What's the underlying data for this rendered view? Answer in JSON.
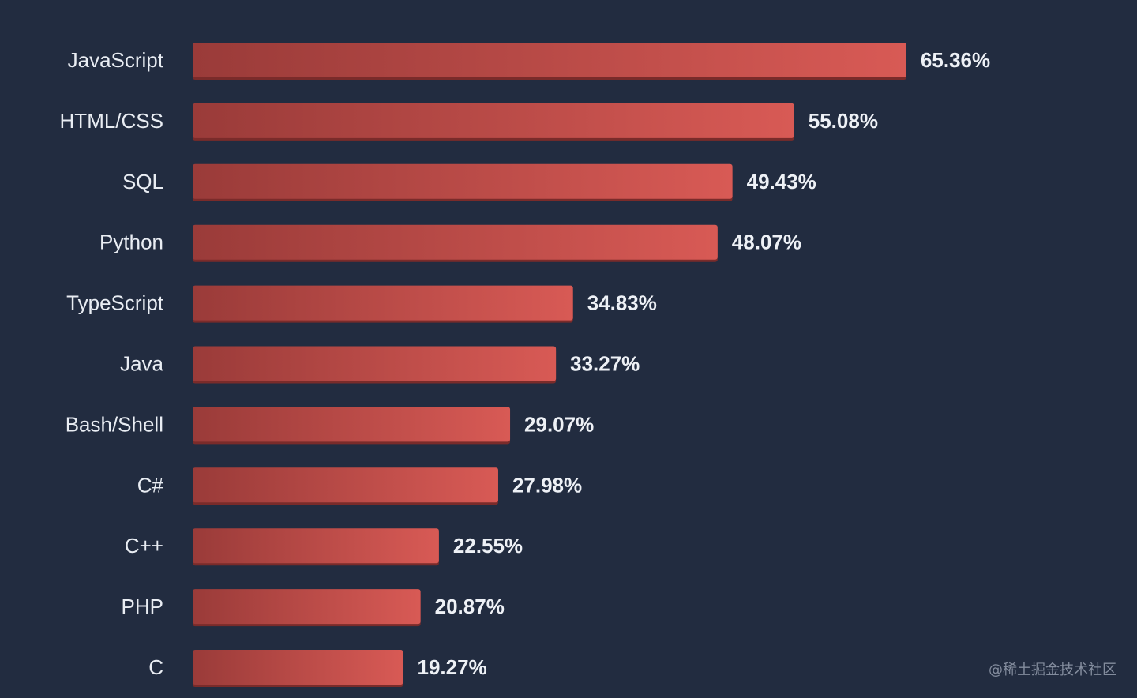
{
  "chart_data": {
    "type": "bar",
    "orientation": "horizontal",
    "categories": [
      "JavaScript",
      "HTML/CSS",
      "SQL",
      "Python",
      "TypeScript",
      "Java",
      "Bash/Shell",
      "C#",
      "C++",
      "PHP",
      "C"
    ],
    "values": [
      65.36,
      55.08,
      49.43,
      48.07,
      34.83,
      33.27,
      29.07,
      27.98,
      22.55,
      20.87,
      19.27
    ],
    "value_labels": [
      "65.36%",
      "55.08%",
      "49.43%",
      "48.07%",
      "34.83%",
      "33.27%",
      "29.07%",
      "27.98%",
      "22.55%",
      "20.87%",
      "19.27%"
    ],
    "unit": "%",
    "title": "",
    "xlabel": "",
    "ylabel": "",
    "grid": false,
    "legend": "none",
    "bar_color_start": "#9a3b39",
    "bar_color_end": "#d85a55",
    "bar_shadow_color": "#7a2b2a",
    "background_color": "#222c40"
  },
  "watermark": "@稀土掘金技术社区"
}
